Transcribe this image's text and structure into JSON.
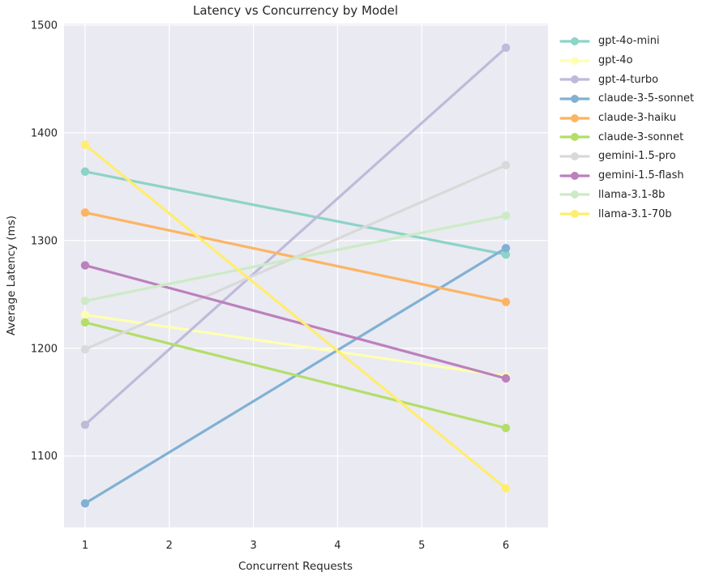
{
  "chart_data": {
    "type": "line",
    "title": "Latency vs Concurrency by Model",
    "xlabel": "Concurrent Requests",
    "ylabel": "Average Latency (ms)",
    "x": [
      1,
      6
    ],
    "x_ticks": [
      1,
      2,
      3,
      4,
      5,
      6
    ],
    "y_ticks": [
      1100,
      1200,
      1300,
      1400,
      1500
    ],
    "xlim": [
      0.75,
      6.25
    ],
    "ylim": [
      1033.75,
      1501.25
    ],
    "grid": true,
    "legend_position": "right-outside-top",
    "plot_bg_color": "#eaeaf2",
    "grid_color": "#ffffff",
    "text_color": "#262626",
    "series": [
      {
        "name": "gpt-4o-mini",
        "color": "#8dd3c7",
        "values": [
          1364,
          1287
        ]
      },
      {
        "name": "gpt-4o",
        "color": "#ffffb3",
        "values": [
          1231,
          1174
        ]
      },
      {
        "name": "gpt-4-turbo",
        "color": "#bebada",
        "values": [
          1129,
          1479
        ]
      },
      {
        "name": "claude-3-5-sonnet",
        "color": "#80b1d3",
        "values": [
          1056,
          1293
        ]
      },
      {
        "name": "claude-3-haiku",
        "color": "#fdb462",
        "values": [
          1326,
          1243
        ]
      },
      {
        "name": "claude-3-sonnet",
        "color": "#b3de69",
        "values": [
          1224,
          1126
        ]
      },
      {
        "name": "gemini-1.5-pro",
        "color": "#d9d9d9",
        "values": [
          1199,
          1370
        ]
      },
      {
        "name": "gemini-1.5-flash",
        "color": "#bc80bd",
        "values": [
          1277,
          1172
        ]
      },
      {
        "name": "llama-3.1-8b",
        "color": "#ccebc5",
        "values": [
          1244,
          1323
        ]
      },
      {
        "name": "llama-3.1-70b",
        "color": "#ffed6f",
        "values": [
          1389,
          1070
        ]
      }
    ]
  }
}
